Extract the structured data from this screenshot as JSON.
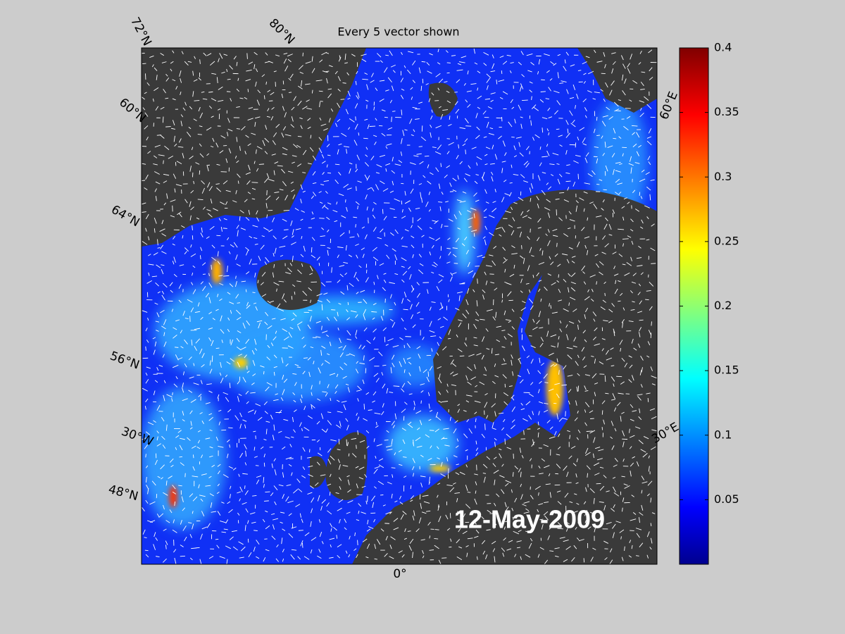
{
  "title": "Every 5 vector shown",
  "date": "12-May-2009",
  "graticule_labels": [
    "72°N",
    "80°N",
    "60°N",
    "64°N",
    "56°N",
    "30°W",
    "48°N",
    "0°",
    "60°E",
    "30°E"
  ],
  "colorbar": {
    "colormap": "jet",
    "lim": [
      0,
      0.4
    ],
    "ticks": [
      0.05,
      0.1,
      0.15,
      0.2,
      0.25,
      0.3,
      0.35,
      0.4
    ]
  }
}
